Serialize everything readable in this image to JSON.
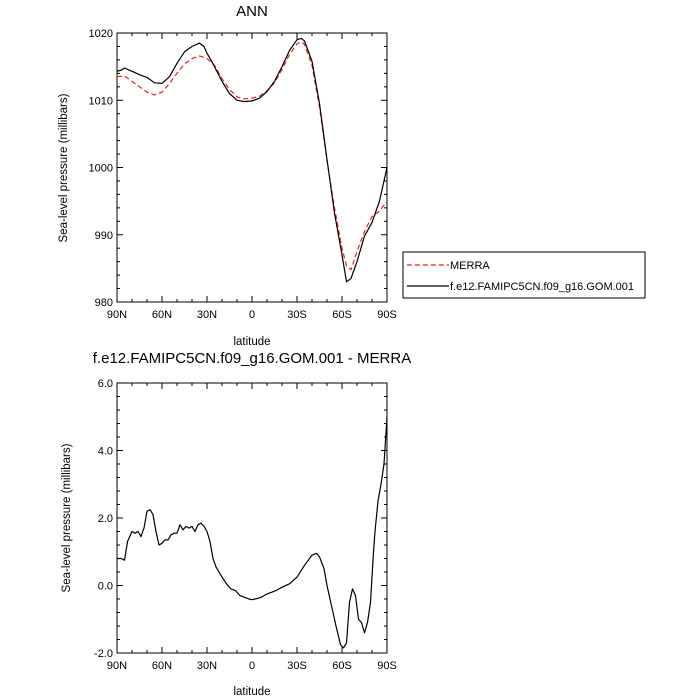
{
  "chart_data": [
    {
      "type": "line",
      "title": "ANN",
      "xlabel": "latitude",
      "ylabel": "Sea-level pressure (millibars)",
      "xlim": [
        90,
        -90
      ],
      "ylim": [
        980,
        1020
      ],
      "x_ticks": [
        "90N",
        "60N",
        "30N",
        "0",
        "30S",
        "60S",
        "90S"
      ],
      "y_ticks": [
        "980",
        "990",
        "1000",
        "1010",
        "1020"
      ],
      "legend_position": "right",
      "series": [
        {
          "name": "MERRA",
          "color": "#e8211d",
          "dash": "dashed",
          "x": [
            90,
            85,
            80,
            75,
            70,
            65,
            60,
            55,
            50,
            45,
            40,
            35,
            30,
            25,
            20,
            15,
            10,
            5,
            0,
            -5,
            -10,
            -15,
            -20,
            -25,
            -30,
            -33,
            -35,
            -40,
            -45,
            -50,
            -55,
            -60,
            -63,
            -66,
            -70,
            -75,
            -80,
            -85,
            -90
          ],
          "values": [
            1013.5,
            1013.6,
            1012.8,
            1012.0,
            1011.2,
            1010.8,
            1011.2,
            1012.5,
            1014.0,
            1015.4,
            1016.2,
            1016.6,
            1016.2,
            1015.2,
            1013.2,
            1011.6,
            1010.5,
            1010.2,
            1010.3,
            1010.6,
            1011.4,
            1012.6,
            1014.6,
            1016.8,
            1018.4,
            1018.7,
            1018.3,
            1015.2,
            1009.0,
            1001.0,
            994.0,
            988.0,
            985.4,
            984.8,
            987.5,
            990.5,
            992.7,
            993.5,
            995.0
          ]
        },
        {
          "name": "f.e12.FAMIPC5CN.f09_g16.GOM.001",
          "color": "#000000",
          "dash": "solid",
          "x": [
            90,
            87,
            85,
            80,
            75,
            70,
            65,
            60,
            55,
            50,
            45,
            40,
            35,
            32,
            30,
            25,
            20,
            15,
            10,
            5,
            0,
            -5,
            -10,
            -15,
            -20,
            -25,
            -30,
            -33,
            -35,
            -40,
            -45,
            -50,
            -55,
            -60,
            -63,
            -66,
            -70,
            -75,
            -80,
            -85,
            -90
          ],
          "values": [
            1014.3,
            1014.5,
            1014.8,
            1014.3,
            1013.8,
            1013.4,
            1012.6,
            1012.5,
            1013.5,
            1015.5,
            1017.2,
            1018.0,
            1018.5,
            1018.0,
            1017.0,
            1015.0,
            1012.8,
            1011.0,
            1010.0,
            1009.8,
            1009.9,
            1010.3,
            1011.3,
            1012.8,
            1015.0,
            1017.4,
            1019.0,
            1019.2,
            1018.8,
            1015.8,
            1009.5,
            1001.2,
            993.2,
            987.0,
            983.0,
            983.5,
            986.0,
            989.8,
            991.8,
            995.0,
            1000.0
          ]
        }
      ]
    },
    {
      "type": "line",
      "title": "f.e12.FAMIPC5CN.f09_g16.GOM.001 - MERRA",
      "xlabel": "latitude",
      "ylabel": "Sea-level pressure (millibars)",
      "xlim": [
        90,
        -90
      ],
      "ylim": [
        -2.0,
        6.0
      ],
      "x_ticks": [
        "90N",
        "60N",
        "30N",
        "0",
        "30S",
        "60S",
        "90S"
      ],
      "y_ticks": [
        "-2.0",
        "0.0",
        "2.0",
        "4.0",
        "6.0"
      ],
      "series": [
        {
          "color": "#000000",
          "x": [
            90,
            87,
            85,
            83,
            80,
            78,
            76,
            74,
            72,
            70,
            68,
            66,
            64,
            62,
            60,
            58,
            56,
            54,
            52,
            50,
            48,
            46,
            44,
            42,
            40,
            38,
            36,
            34,
            32,
            30,
            28,
            26,
            24,
            22,
            20,
            17,
            14,
            11,
            8,
            5,
            2,
            0,
            -2,
            -4,
            -6,
            -8,
            -10,
            -13,
            -16,
            -20,
            -25,
            -30,
            -35,
            -40,
            -43,
            -45,
            -48,
            -50,
            -53,
            -56,
            -59,
            -61,
            -63,
            -65,
            -67,
            -69,
            -71,
            -73,
            -75,
            -77,
            -79,
            -81,
            -82,
            -84,
            -86,
            -88,
            -90
          ],
          "values": [
            0.8,
            0.8,
            0.75,
            1.3,
            1.6,
            1.55,
            1.6,
            1.45,
            1.7,
            2.2,
            2.25,
            2.1,
            1.6,
            1.2,
            1.25,
            1.35,
            1.35,
            1.5,
            1.55,
            1.55,
            1.8,
            1.65,
            1.75,
            1.7,
            1.75,
            1.6,
            1.8,
            1.85,
            1.75,
            1.6,
            1.3,
            0.8,
            0.55,
            0.4,
            0.25,
            0.05,
            -0.1,
            -0.15,
            -0.3,
            -0.35,
            -0.4,
            -0.42,
            -0.4,
            -0.38,
            -0.35,
            -0.3,
            -0.25,
            -0.2,
            -0.15,
            -0.05,
            0.05,
            0.25,
            0.6,
            0.9,
            0.95,
            0.85,
            0.5,
            0.0,
            -0.6,
            -1.2,
            -1.75,
            -1.85,
            -1.7,
            -0.5,
            -0.1,
            -0.3,
            -1.0,
            -1.1,
            -1.4,
            -1.1,
            -0.5,
            1.0,
            1.6,
            2.5,
            3.0,
            3.6,
            5.0
          ]
        }
      ]
    }
  ]
}
